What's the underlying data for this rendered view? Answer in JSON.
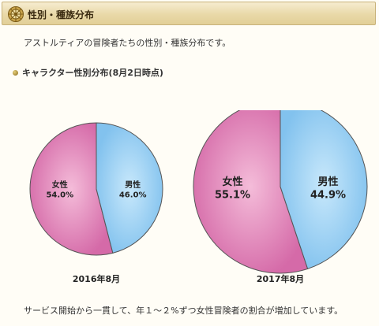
{
  "header": {
    "title": "性別・種族分布",
    "icon": "compass-wheel-icon"
  },
  "intro": "アストルティアの冒険者たちの性別・種族分布です。",
  "subtitle": "キャラクター性別分布(8月2日時点)",
  "chart_data": [
    {
      "type": "pie",
      "title": "2016年8月",
      "labels": [
        "女性",
        "男性"
      ],
      "values": [
        54.0,
        46.0
      ],
      "value_labels": [
        "54.0%",
        "46.0%"
      ],
      "colors": [
        "#d977b0",
        "#8ccaf2"
      ]
    },
    {
      "type": "pie",
      "title": "2017年8月",
      "labels": [
        "女性",
        "男性"
      ],
      "values": [
        55.1,
        44.9
      ],
      "value_labels": [
        "55.1%",
        "44.9%"
      ],
      "colors": [
        "#d977b0",
        "#8ccaf2"
      ]
    }
  ],
  "footer": "サービス開始から一貫して、年１～２%ずつ女性冒険者の割合が増加しています。"
}
